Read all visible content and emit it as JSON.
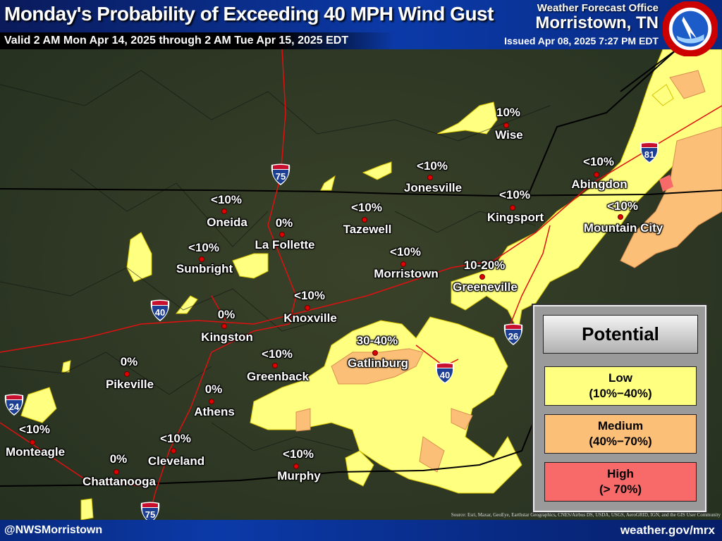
{
  "header": {
    "title": "Monday's Probability of Exceeding 40 MPH Wind Gust",
    "valid": "Valid 2 AM Mon Apr 14, 2025 through 2 AM Tue Apr 15, 2025 EDT",
    "office_line1": "Weather Forecast Office",
    "office_line2": "Morristown, TN",
    "issued": "Issued Apr 08, 2025 7:27 PM EDT",
    "logo_text": "NATIONAL WEATHER SERVICE"
  },
  "cities": [
    {
      "name": "Wise",
      "value": "10%"
    },
    {
      "name": "Jonesville",
      "value": "<10%"
    },
    {
      "name": "Abingdon",
      "value": "<10%"
    },
    {
      "name": "Kingsport",
      "value": "<10%"
    },
    {
      "name": "Mountain City",
      "value": "<10%"
    },
    {
      "name": "Oneida",
      "value": "<10%"
    },
    {
      "name": "Tazewell",
      "value": "<10%"
    },
    {
      "name": "La Follette",
      "value": "0%"
    },
    {
      "name": "Sunbright",
      "value": "<10%"
    },
    {
      "name": "Morristown",
      "value": "<10%"
    },
    {
      "name": "Greeneville",
      "value": "10-20%"
    },
    {
      "name": "Knoxville",
      "value": "<10%"
    },
    {
      "name": "Kingston",
      "value": "0%"
    },
    {
      "name": "Gatlinburg",
      "value": "30-40%"
    },
    {
      "name": "Greenback",
      "value": "<10%"
    },
    {
      "name": "Pikeville",
      "value": "0%"
    },
    {
      "name": "Athens",
      "value": "0%"
    },
    {
      "name": "Monteagle",
      "value": "<10%"
    },
    {
      "name": "Cleveland",
      "value": "<10%"
    },
    {
      "name": "Chattanooga",
      "value": "0%"
    },
    {
      "name": "Murphy",
      "value": "<10%"
    }
  ],
  "interstates": [
    "75",
    "40",
    "40",
    "26",
    "81",
    "24",
    "75"
  ],
  "legend": {
    "title": "Potential",
    "items": [
      {
        "label": "Low",
        "range": "(10%−40%)",
        "color": "#ffff80"
      },
      {
        "label": "Medium",
        "range": "(40%−70%)",
        "color": "#fbbf77"
      },
      {
        "label": "High",
        "range": "(> 70%)",
        "color": "#f86a6a"
      }
    ]
  },
  "source": "Source: Esri, Maxar, GeoEye, Earthstar Geographics, CNES/Airbus DS, USDA, USGS, AeroGRID, IGN, and the GIS User Community",
  "footer": {
    "left": "@NWSMorristown",
    "right": "weather.gov/mrx"
  },
  "colors": {
    "low": "#ffff80",
    "medium": "#fbbf77",
    "high": "#f86a6a",
    "roads": "#e01010",
    "borders": "#000000"
  }
}
